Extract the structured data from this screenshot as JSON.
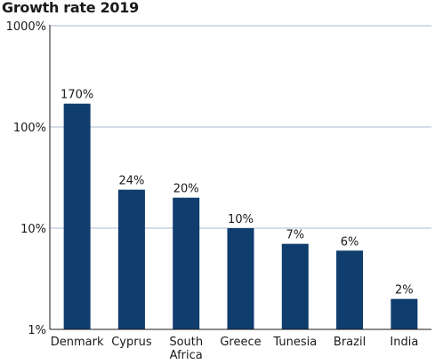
{
  "chart_data": {
    "type": "bar",
    "title": "Growth rate 2019",
    "xlabel": "",
    "ylabel": "",
    "yscale": "log",
    "ylim": [
      1,
      1000
    ],
    "yticks": [
      1,
      10,
      100,
      1000
    ],
    "ytick_labels": [
      "1%",
      "10%",
      "100%",
      "1000%"
    ],
    "grid": "horizontal",
    "bar_color": "#0f3d6e",
    "grid_color": "#aab8cc",
    "categories": [
      [
        "Denmark"
      ],
      [
        "Cyprus"
      ],
      [
        "South",
        "Africa"
      ],
      [
        "Greece"
      ],
      [
        "Tunesia"
      ],
      [
        "Brazil"
      ],
      [
        "India"
      ]
    ],
    "values": [
      170,
      24,
      20,
      10,
      7,
      6,
      2
    ],
    "value_labels": [
      "170%",
      "24%",
      "20%",
      "10%",
      "7%",
      "6%",
      "2%"
    ]
  }
}
